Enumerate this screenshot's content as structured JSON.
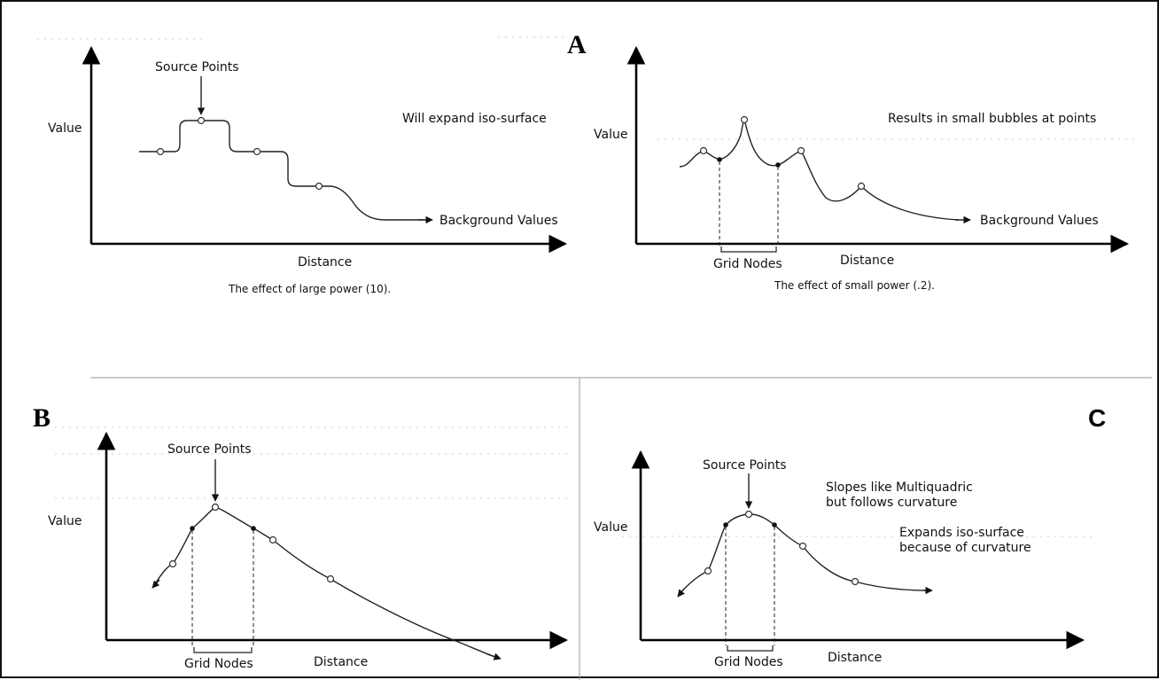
{
  "panels": {
    "A": {
      "letter": "A",
      "left": {
        "source_points": "Source Points",
        "value": "Value",
        "note": "Will expand iso-surface",
        "background": "Background Values",
        "distance": "Distance",
        "caption": "The effect of large power (10)."
      },
      "right": {
        "value": "Value",
        "note": "Results in small bubbles at points",
        "background": "Background Values",
        "grid_nodes": "Grid Nodes",
        "distance": "Distance",
        "caption": "The effect of small power (.2)."
      }
    },
    "B": {
      "letter": "B",
      "source_points": "Source Points",
      "value": "Value",
      "grid_nodes": "Grid Nodes",
      "distance": "Distance"
    },
    "C": {
      "letter": "C",
      "source_points": "Source Points",
      "value": "Value",
      "note1_line1": "Slopes like Multiquadric",
      "note1_line2": "but follows curvature",
      "note2_line1": "Expands iso-surface",
      "note2_line2": "because of curvature",
      "grid_nodes": "Grid Nodes",
      "distance": "Distance"
    }
  }
}
